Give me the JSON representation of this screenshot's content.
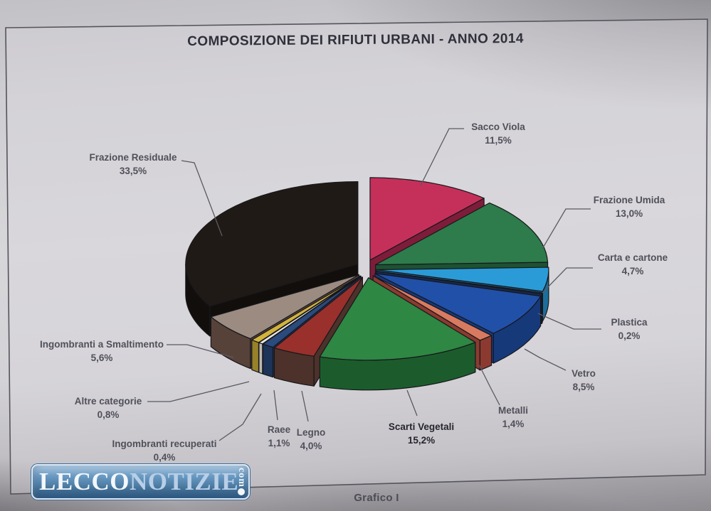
{
  "page": {
    "caption": "Grafico I"
  },
  "watermark": {
    "part1": "LECCO",
    "part2": "NOTIZIE",
    "suffix": "com",
    "badge_color": "#4a7fb0"
  },
  "chart_data": {
    "type": "pie",
    "style": "3d-exploded",
    "title": "COMPOSIZIONE DEI RIFIUTI URBANI - ANNO 2014",
    "unit": "%",
    "decimal_separator": ",",
    "direction": "clockwise",
    "start_angle_deg": 0,
    "legend_position": "labels-around-chart",
    "slices": [
      {
        "label": "Sacco Viola",
        "value": 11.5,
        "display": "11,5%",
        "color": "#c5305a",
        "side_color": "#7e1d3a"
      },
      {
        "label": "Frazione Umida",
        "value": 13.0,
        "display": "13,0%",
        "color": "#2e7b4b",
        "side_color": "#1d5232"
      },
      {
        "label": "Carta e cartone",
        "value": 4.7,
        "display": "4,7%",
        "color": "#2b9bd7",
        "side_color": "#1d6e9b"
      },
      {
        "label": "Plastica",
        "value": 0.2,
        "display": "0,2%",
        "color": "#1f3e73",
        "side_color": "#152a4e"
      },
      {
        "label": "Vetro",
        "value": 8.5,
        "display": "8,5%",
        "color": "#2150a8",
        "side_color": "#16397a"
      },
      {
        "label": "Metalli",
        "value": 1.4,
        "display": "1,4%",
        "color": "#d87a60",
        "side_color": "#8c3a30"
      },
      {
        "label": "Scarti Vegetali",
        "value": 15.2,
        "display": "15,2%",
        "color": "#2e8743",
        "side_color": "#1c5c2c",
        "emphasis": true
      },
      {
        "label": "Legno",
        "value": 4.0,
        "display": "4,0%",
        "color": "#99302c",
        "side_color": "#4c322a"
      },
      {
        "label": "Raee",
        "value": 1.1,
        "display": "1,1%",
        "color": "#2b4a7d",
        "side_color": "#1d3357"
      },
      {
        "label": "Ingombranti recuperati",
        "value": 0.4,
        "display": "0,4%",
        "color": "#e9e6df",
        "side_color": "#bdb9b0"
      },
      {
        "label": "Altre categorie",
        "value": 0.8,
        "display": "0,8%",
        "color": "#d2b33c",
        "side_color": "#97822a"
      },
      {
        "label": "Ingombranti a Smaltimento",
        "value": 5.6,
        "display": "5,6%",
        "color": "#9b8b81",
        "side_color": "#57423a"
      },
      {
        "label": "Frazione Residuale",
        "value": 33.5,
        "display": "33,5%",
        "color": "#201a16",
        "side_color": "#110e0c"
      }
    ]
  }
}
